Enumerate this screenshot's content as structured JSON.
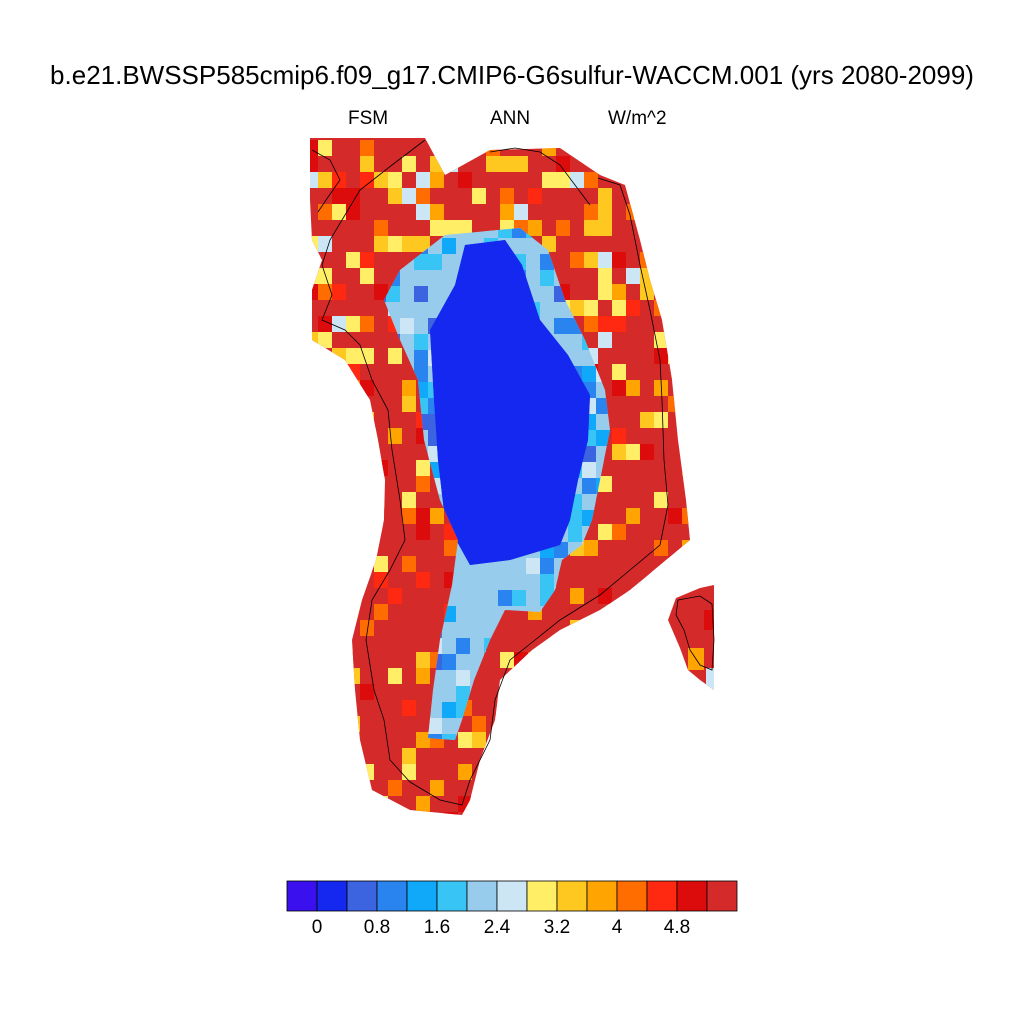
{
  "title": "b.e21.BWSSP585cmip6.f09_g17.CMIP6-G6sulfur-WACCM.001 (yrs 2080-2099)",
  "subtitle_left": "FSM",
  "subtitle_center": "ANN",
  "subtitle_right": "W/m^2",
  "colorbar": {
    "colors": [
      "#3a10ee",
      "#1428f0",
      "#3c64e0",
      "#2a84f0",
      "#10a8f8",
      "#38c4f4",
      "#98ccec",
      "#cce6f6",
      "#ffee66",
      "#ffc820",
      "#ffa400",
      "#ff6c00",
      "#ff2810",
      "#dc0c0c",
      "#d42a2a"
    ],
    "tick_labels": [
      "0",
      "0.8",
      "1.6",
      "2.4",
      "3.2",
      "4",
      "4.8"
    ]
  }
}
